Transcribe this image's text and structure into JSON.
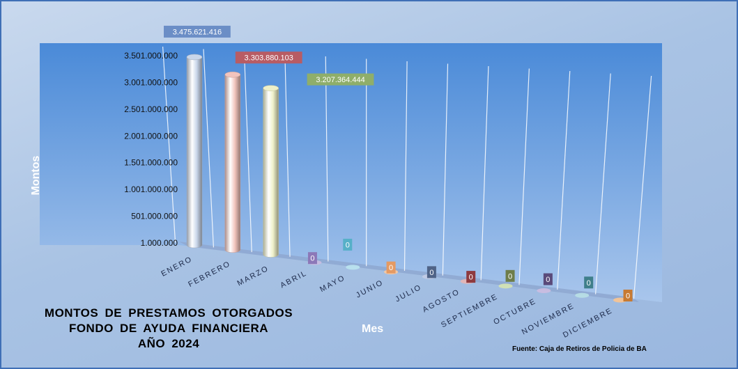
{
  "chart_data": {
    "type": "bar",
    "title": [
      "MONTOS DE PRESTAMOS OTORGADOS",
      "FONDO DE AYUDA FINANCIERA",
      "AÑO 2024"
    ],
    "xlabel": "Mes",
    "ylabel": "Montos",
    "source": "Fuente: Caja de Retiros de Policia de BA",
    "categories": [
      "ENERO",
      "FEBRERO",
      "MARZO",
      "ABRIL",
      "MAYO",
      "JUNIO",
      "JULIO",
      "AGOSTO",
      "SEPTIEMBRE",
      "OCTUBRE",
      "NOVIEMBRE",
      "DICIEMBRE"
    ],
    "values": [
      3475621416,
      3303880103,
      3207364444,
      0,
      0,
      0,
      0,
      0,
      0,
      0,
      0,
      0
    ],
    "value_labels": [
      "3.475.621.416",
      "3.303.880.103",
      "3.207.364.444",
      "0",
      "0",
      "0",
      "0",
      "0",
      "0",
      "0",
      "0",
      "0"
    ],
    "yticks": [
      {
        "label": "1.000.000",
        "value": 1000000
      },
      {
        "label": "501.000.000",
        "value": 501000000
      },
      {
        "label": "1.001.000.000",
        "value": 1001000000
      },
      {
        "label": "1.501.000.000",
        "value": 1501000000
      },
      {
        "label": "2.001.000.000",
        "value": 2001000000
      },
      {
        "label": "2.501.000.000",
        "value": 2501000000
      },
      {
        "label": "3.001.000.000",
        "value": 3001000000
      },
      {
        "label": "3.501.000.000",
        "value": 3501000000
      }
    ],
    "ylim": [
      1000000,
      3501000000
    ],
    "bar_colors": [
      "#c9d6ea",
      "#f2c4bd",
      "#eef0c8",
      "#c7bde0",
      "#b9e2ee",
      "#f7c8a1",
      "#c2cbe6",
      "#e5b5b5",
      "#d3e2b4",
      "#cabde0",
      "#b7dde5",
      "#f5c495"
    ],
    "label_colors": [
      "#6b8ec6",
      "#b85c64",
      "#8fae6a",
      "#8c78b8",
      "#56b0c8",
      "#e59a63",
      "#4f6387",
      "#8e3a3f",
      "#6e7d4a",
      "#5a4a7a",
      "#3f7f8a",
      "#c77a32"
    ]
  }
}
